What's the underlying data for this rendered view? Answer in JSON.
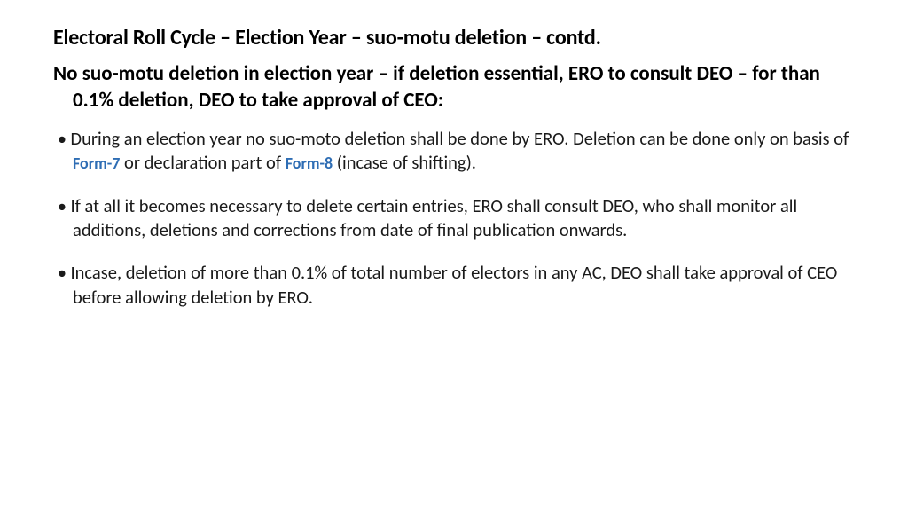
{
  "title": "Electoral Roll Cycle – Election Year – suo-motu deletion – contd.",
  "subtitle": "No suo-motu deletion in election year – if deletion essential, ERO to consult DEO – for than 0.1% deletion, DEO to take approval of CEO:",
  "bullets": {
    "b1_pre": "During an election year no suo-moto deletion shall be done by ERO. Deletion can be done only on basis of ",
    "b1_link1": "Form-7",
    "b1_mid": " or declaration part of ",
    "b1_link2": "Form-8",
    "b1_post": " (incase of shifting).",
    "b2": "If at all it becomes necessary to delete certain entries, ERO shall  consult DEO, who shall monitor all additions, deletions and corrections from date of final publication onwards.",
    "b3": "Incase, deletion of more than 0.1% of total number of electors in any AC, DEO shall take approval of CEO before allowing deletion by ERO."
  },
  "style": {
    "title_fontsize": 24,
    "subtitle_fontsize": 23,
    "body_fontsize": 20.5,
    "link_fontsize": 18,
    "text_color": "#000000",
    "link_color": "#2e6db4",
    "background_color": "#ffffff",
    "font_family": "Calibri",
    "title_weight": 700,
    "subtitle_weight": 700,
    "body_weight": 400,
    "link_weight": 700
  }
}
